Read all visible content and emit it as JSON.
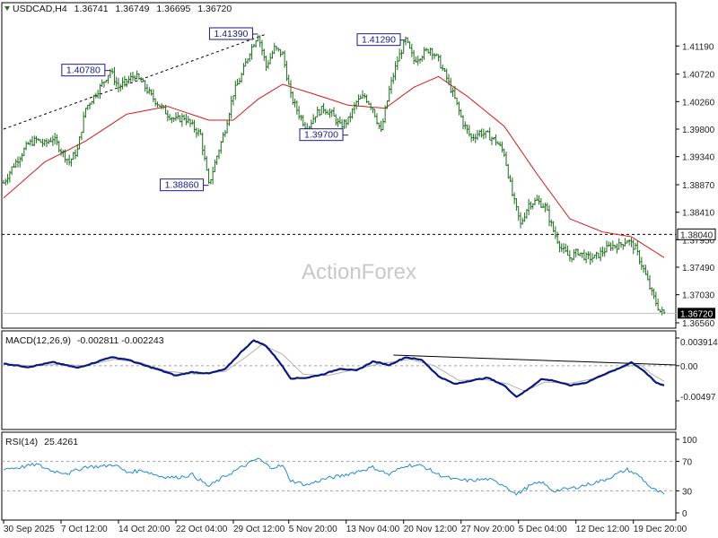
{
  "chart_data": [
    {
      "type": "line",
      "title": "USDCAD,H4",
      "ohlc": {
        "open": "1.36741",
        "high": "1.36749",
        "low": "1.36695",
        "close": "1.36720"
      },
      "watermark": "ActionForex",
      "ylim": [
        1.3656,
        1.4166
      ],
      "y_ticks": [
        "1.41190",
        "1.40720",
        "1.40260",
        "1.39800",
        "1.39340",
        "1.38870",
        "1.38410",
        "1.37950",
        "1.37490",
        "1.37030",
        "1.36560"
      ],
      "x_ticks": [
        "30 Sep 2025",
        "7 Oct 12:00",
        "14 Oct 20:00",
        "22 Oct 04:00",
        "29 Oct 12:00",
        "5 Nov 20:00",
        "13 Nov 04:00",
        "20 Nov 12:00",
        "27 Nov 20:00",
        "5 Dec 04:00",
        "12 Dec 12:00",
        "19 Dec 20:00"
      ],
      "level": {
        "value": 1.3804,
        "label": "1.38040"
      },
      "last_price": {
        "value": 1.3672,
        "label": "1.36720"
      },
      "price_key": [
        [
          0,
          1.389
        ],
        [
          4,
          1.3915
        ],
        [
          8,
          1.3935
        ],
        [
          12,
          1.3955
        ],
        [
          16,
          1.3962
        ],
        [
          20,
          1.3955
        ],
        [
          24,
          1.3965
        ],
        [
          28,
          1.3945
        ],
        [
          32,
          1.3925
        ],
        [
          36,
          1.3945
        ],
        [
          40,
          1.4015
        ],
        [
          44,
          1.4035
        ],
        [
          48,
          1.4055
        ],
        [
          52,
          1.4078
        ],
        [
          56,
          1.405
        ],
        [
          60,
          1.406
        ],
        [
          64,
          1.407
        ],
        [
          68,
          1.4055
        ],
        [
          72,
          1.4035
        ],
        [
          76,
          1.402
        ],
        [
          80,
          1.4005
        ],
        [
          84,
          1.3995
        ],
        [
          88,
          1.4
        ],
        [
          92,
          1.3985
        ],
        [
          96,
          1.397
        ],
        [
          100,
          1.3886
        ],
        [
          104,
          1.3935
        ],
        [
          108,
          1.398
        ],
        [
          112,
          1.404
        ],
        [
          116,
          1.407
        ],
        [
          120,
          1.411
        ],
        [
          124,
          1.4139
        ],
        [
          128,
          1.4085
        ],
        [
          132,
          1.4115
        ],
        [
          136,
          1.4105
        ],
        [
          140,
          1.4035
        ],
        [
          144,
          1.4005
        ],
        [
          148,
          1.398
        ],
        [
          152,
          1.4005
        ],
        [
          156,
          1.4015
        ],
        [
          160,
          1.4005
        ],
        [
          164,
          1.3985
        ],
        [
          168,
          1.3995
        ],
        [
          172,
          1.4025
        ],
        [
          176,
          1.4035
        ],
        [
          180,
          1.4015
        ],
        [
          184,
          1.3975
        ],
        [
          188,
          1.4045
        ],
        [
          192,
          1.4095
        ],
        [
          196,
          1.4129
        ],
        [
          200,
          1.4095
        ],
        [
          204,
          1.4105
        ],
        [
          208,
          1.4115
        ],
        [
          212,
          1.4095
        ],
        [
          216,
          1.4065
        ],
        [
          220,
          1.403
        ],
        [
          224,
          1.399
        ],
        [
          228,
          1.3965
        ],
        [
          232,
          1.3975
        ],
        [
          236,
          1.397
        ],
        [
          240,
          1.396
        ],
        [
          244,
          1.394
        ],
        [
          248,
          1.387
        ],
        [
          252,
          1.382
        ],
        [
          256,
          1.3855
        ],
        [
          260,
          1.386
        ],
        [
          264,
          1.385
        ],
        [
          268,
          1.381
        ],
        [
          272,
          1.378
        ],
        [
          276,
          1.3765
        ],
        [
          280,
          1.3775
        ],
        [
          284,
          1.3765
        ],
        [
          288,
          1.3765
        ],
        [
          292,
          1.3775
        ],
        [
          296,
          1.3785
        ],
        [
          300,
          1.3785
        ],
        [
          304,
          1.3795
        ],
        [
          308,
          1.378
        ],
        [
          312,
          1.3745
        ],
        [
          316,
          1.3705
        ],
        [
          320,
          1.3675
        ],
        [
          322,
          1.3672
        ]
      ],
      "ma_key": [
        [
          0,
          1.3865
        ],
        [
          20,
          1.3925
        ],
        [
          40,
          1.396
        ],
        [
          60,
          1.4005
        ],
        [
          80,
          1.4018
        ],
        [
          100,
          1.3995
        ],
        [
          112,
          1.3995
        ],
        [
          124,
          1.403
        ],
        [
          136,
          1.4055
        ],
        [
          150,
          1.404
        ],
        [
          168,
          1.402
        ],
        [
          186,
          1.4015
        ],
        [
          200,
          1.405
        ],
        [
          212,
          1.4068
        ],
        [
          226,
          1.4035
        ],
        [
          244,
          1.3985
        ],
        [
          260,
          1.3905
        ],
        [
          276,
          1.383
        ],
        [
          292,
          1.3808
        ],
        [
          306,
          1.38
        ],
        [
          322,
          1.3765
        ]
      ],
      "trendline": {
        "from": [
          0,
          1.398
        ],
        "to": [
          128,
          1.4139
        ]
      },
      "annotations": [
        {
          "label": "1.40780",
          "bar": 52,
          "value": 1.4078,
          "side": "left"
        },
        {
          "label": "1.41390",
          "bar": 124,
          "value": 1.4139,
          "side": "left"
        },
        {
          "label": "1.41290",
          "bar": 196,
          "value": 1.4129,
          "side": "left"
        },
        {
          "label": "1.38860",
          "bar": 100,
          "value": 1.3886,
          "side": "left"
        },
        {
          "label": "1.39700",
          "bar": 168,
          "value": 1.397,
          "side": "left"
        }
      ]
    },
    {
      "type": "line",
      "title": "MACD(12,26,9)",
      "values_label": "-0.002811 -0.002243",
      "ylim": [
        -0.00497,
        0.003914
      ],
      "y_ticks": [
        "0.003914",
        "0.00",
        "-0.00497"
      ],
      "macd_key": [
        [
          0,
          0.0003
        ],
        [
          12,
          -0.0002
        ],
        [
          24,
          0.0005
        ],
        [
          36,
          -0.0003
        ],
        [
          44,
          0.0004
        ],
        [
          52,
          0.0012
        ],
        [
          60,
          0.0009
        ],
        [
          68,
          0.0001
        ],
        [
          76,
          -0.0006
        ],
        [
          84,
          -0.0014
        ],
        [
          92,
          -0.0009
        ],
        [
          100,
          -0.0011
        ],
        [
          108,
          -0.0005
        ],
        [
          116,
          0.002
        ],
        [
          122,
          0.0036
        ],
        [
          128,
          0.0028
        ],
        [
          134,
          0.0007
        ],
        [
          140,
          -0.0018
        ],
        [
          148,
          -0.0017
        ],
        [
          156,
          -0.0012
        ],
        [
          164,
          -0.0004
        ],
        [
          172,
          -0.0007
        ],
        [
          180,
          0.0006
        ],
        [
          188,
          0.0001
        ],
        [
          196,
          0.0012
        ],
        [
          204,
          0.0008
        ],
        [
          212,
          -0.0015
        ],
        [
          220,
          -0.0026
        ],
        [
          228,
          -0.0021
        ],
        [
          236,
          -0.0017
        ],
        [
          244,
          -0.0028
        ],
        [
          250,
          -0.0044
        ],
        [
          256,
          -0.0033
        ],
        [
          262,
          -0.0019
        ],
        [
          268,
          -0.0021
        ],
        [
          276,
          -0.0028
        ],
        [
          284,
          -0.0024
        ],
        [
          292,
          -0.0013
        ],
        [
          300,
          -0.0004
        ],
        [
          306,
          0.0005
        ],
        [
          312,
          -0.0007
        ],
        [
          318,
          -0.0024
        ],
        [
          322,
          -0.0028
        ]
      ],
      "signal_key": [
        [
          0,
          0.0002
        ],
        [
          14,
          0.0
        ],
        [
          28,
          0.0002
        ],
        [
          40,
          0.0
        ],
        [
          54,
          0.0009
        ],
        [
          66,
          0.0005
        ],
        [
          80,
          -0.0008
        ],
        [
          94,
          -0.0012
        ],
        [
          108,
          -0.0008
        ],
        [
          118,
          0.0012
        ],
        [
          126,
          0.003
        ],
        [
          136,
          0.0016
        ],
        [
          146,
          -0.0012
        ],
        [
          158,
          -0.0014
        ],
        [
          170,
          -0.0006
        ],
        [
          184,
          0.0003
        ],
        [
          198,
          0.0009
        ],
        [
          210,
          0.0
        ],
        [
          222,
          -0.0021
        ],
        [
          234,
          -0.0019
        ],
        [
          246,
          -0.0026
        ],
        [
          254,
          -0.0036
        ],
        [
          264,
          -0.0023
        ],
        [
          276,
          -0.0025
        ],
        [
          290,
          -0.0017
        ],
        [
          302,
          -0.0002
        ],
        [
          310,
          0.0002
        ],
        [
          316,
          -0.0012
        ],
        [
          322,
          -0.0022
        ]
      ],
      "trendline": {
        "from": [
          190,
          0.0015
        ],
        "to": [
          322,
          0.0001
        ]
      }
    },
    {
      "type": "line",
      "title": "RSI(14)",
      "values_label": "25.4261",
      "ylim": [
        0,
        100
      ],
      "y_ticks": [
        "100",
        "70",
        "30",
        "0"
      ],
      "levels": [
        70,
        30
      ],
      "rsi_key": [
        [
          0,
          60
        ],
        [
          8,
          62
        ],
        [
          16,
          66
        ],
        [
          24,
          57
        ],
        [
          32,
          54
        ],
        [
          40,
          63
        ],
        [
          48,
          63
        ],
        [
          54,
          66
        ],
        [
          60,
          55
        ],
        [
          68,
          58
        ],
        [
          76,
          50
        ],
        [
          84,
          48
        ],
        [
          92,
          52
        ],
        [
          100,
          36
        ],
        [
          108,
          50
        ],
        [
          116,
          62
        ],
        [
          124,
          74
        ],
        [
          130,
          62
        ],
        [
          136,
          64
        ],
        [
          140,
          44
        ],
        [
          148,
          38
        ],
        [
          156,
          46
        ],
        [
          164,
          50
        ],
        [
          172,
          56
        ],
        [
          180,
          62
        ],
        [
          188,
          52
        ],
        [
          196,
          65
        ],
        [
          204,
          64
        ],
        [
          212,
          52
        ],
        [
          220,
          45
        ],
        [
          228,
          44
        ],
        [
          236,
          46
        ],
        [
          244,
          38
        ],
        [
          250,
          25
        ],
        [
          256,
          36
        ],
        [
          262,
          42
        ],
        [
          268,
          30
        ],
        [
          276,
          33
        ],
        [
          284,
          38
        ],
        [
          292,
          44
        ],
        [
          300,
          54
        ],
        [
          304,
          59
        ],
        [
          310,
          50
        ],
        [
          316,
          33
        ],
        [
          322,
          25
        ]
      ]
    }
  ]
}
